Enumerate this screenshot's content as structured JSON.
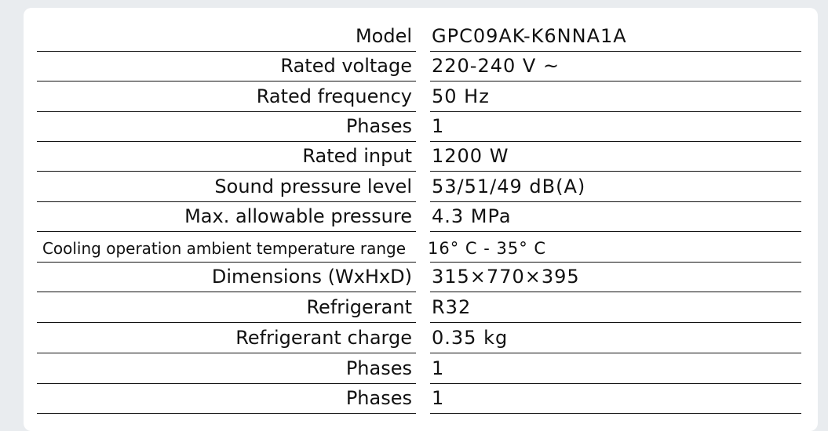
{
  "table": {
    "rows": [
      [
        "Model",
        "GPC09AK-K6NNA1A"
      ],
      [
        "Rated voltage",
        "220-240 V ~"
      ],
      [
        "Rated frequency",
        "50 Hz"
      ],
      [
        "Phases",
        "1"
      ],
      [
        "Rated input",
        "1200 W"
      ],
      [
        "Sound pressure level",
        "53/51/49  dB(A)"
      ],
      [
        "Max. allowable pressure",
        "4.3 MPa"
      ],
      [
        "Cooling operation ambient temperature range",
        "16° C - 35° C"
      ],
      [
        "Dimensions (WxHxD)",
        "315×770×395"
      ],
      [
        "Refrigerant",
        "R32"
      ],
      [
        "Refrigerant charge",
        "0.35 kg"
      ],
      [
        "Phases",
        "1"
      ],
      [
        "Phases",
        "1"
      ]
    ]
  }
}
